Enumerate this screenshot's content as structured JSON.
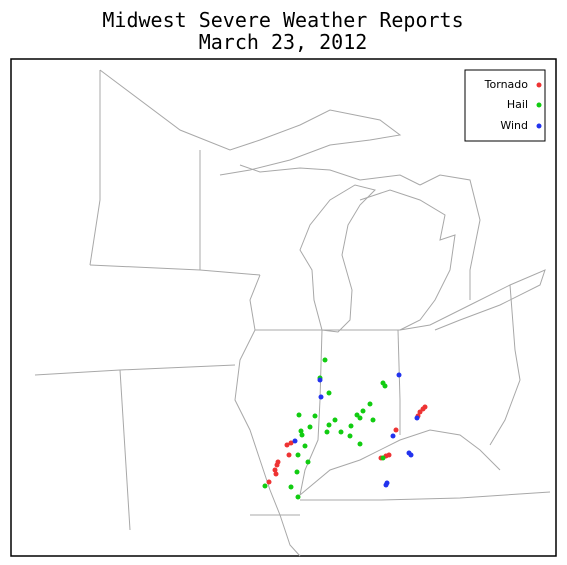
{
  "title": [
    "Midwest Severe Weather Reports",
    "March 23, 2012"
  ],
  "legend": [
    {
      "label": "Tornado",
      "color": "#ee3333"
    },
    {
      "label": "Hail",
      "color": "#11cc11"
    },
    {
      "label": "Wind",
      "color": "#2233ee"
    }
  ]
}
